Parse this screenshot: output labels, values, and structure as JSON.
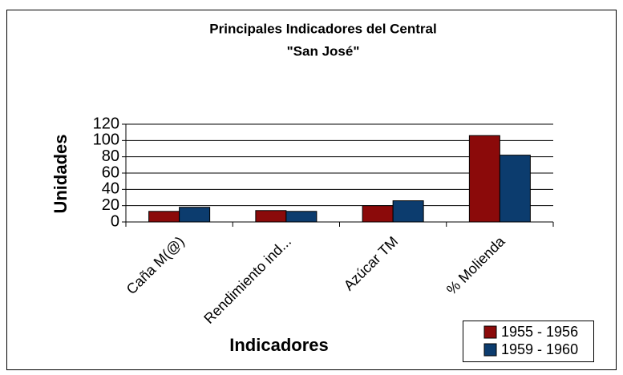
{
  "chart_data": {
    "type": "bar",
    "title": "Principales Indicadores del Central",
    "subtitle": "\"San José\"",
    "x_label": "Indicadores",
    "y_label": "Unidades",
    "categories": [
      "Caña M(@)",
      "Rendimiento ind...",
      "Azúcar TM",
      "% Molienda"
    ],
    "series": [
      {
        "name": "1955 - 1956",
        "color": "#8b0a0a",
        "values": [
          13,
          14,
          20,
          106
        ]
      },
      {
        "name": "1959 - 1960",
        "color": "#0c3c6e",
        "values": [
          18,
          13,
          26,
          82
        ]
      }
    ],
    "ylim": [
      0,
      120
    ],
    "yticks": [
      0,
      20,
      40,
      60,
      80,
      100,
      120
    ],
    "grid": true,
    "legend": "bottom-right"
  }
}
